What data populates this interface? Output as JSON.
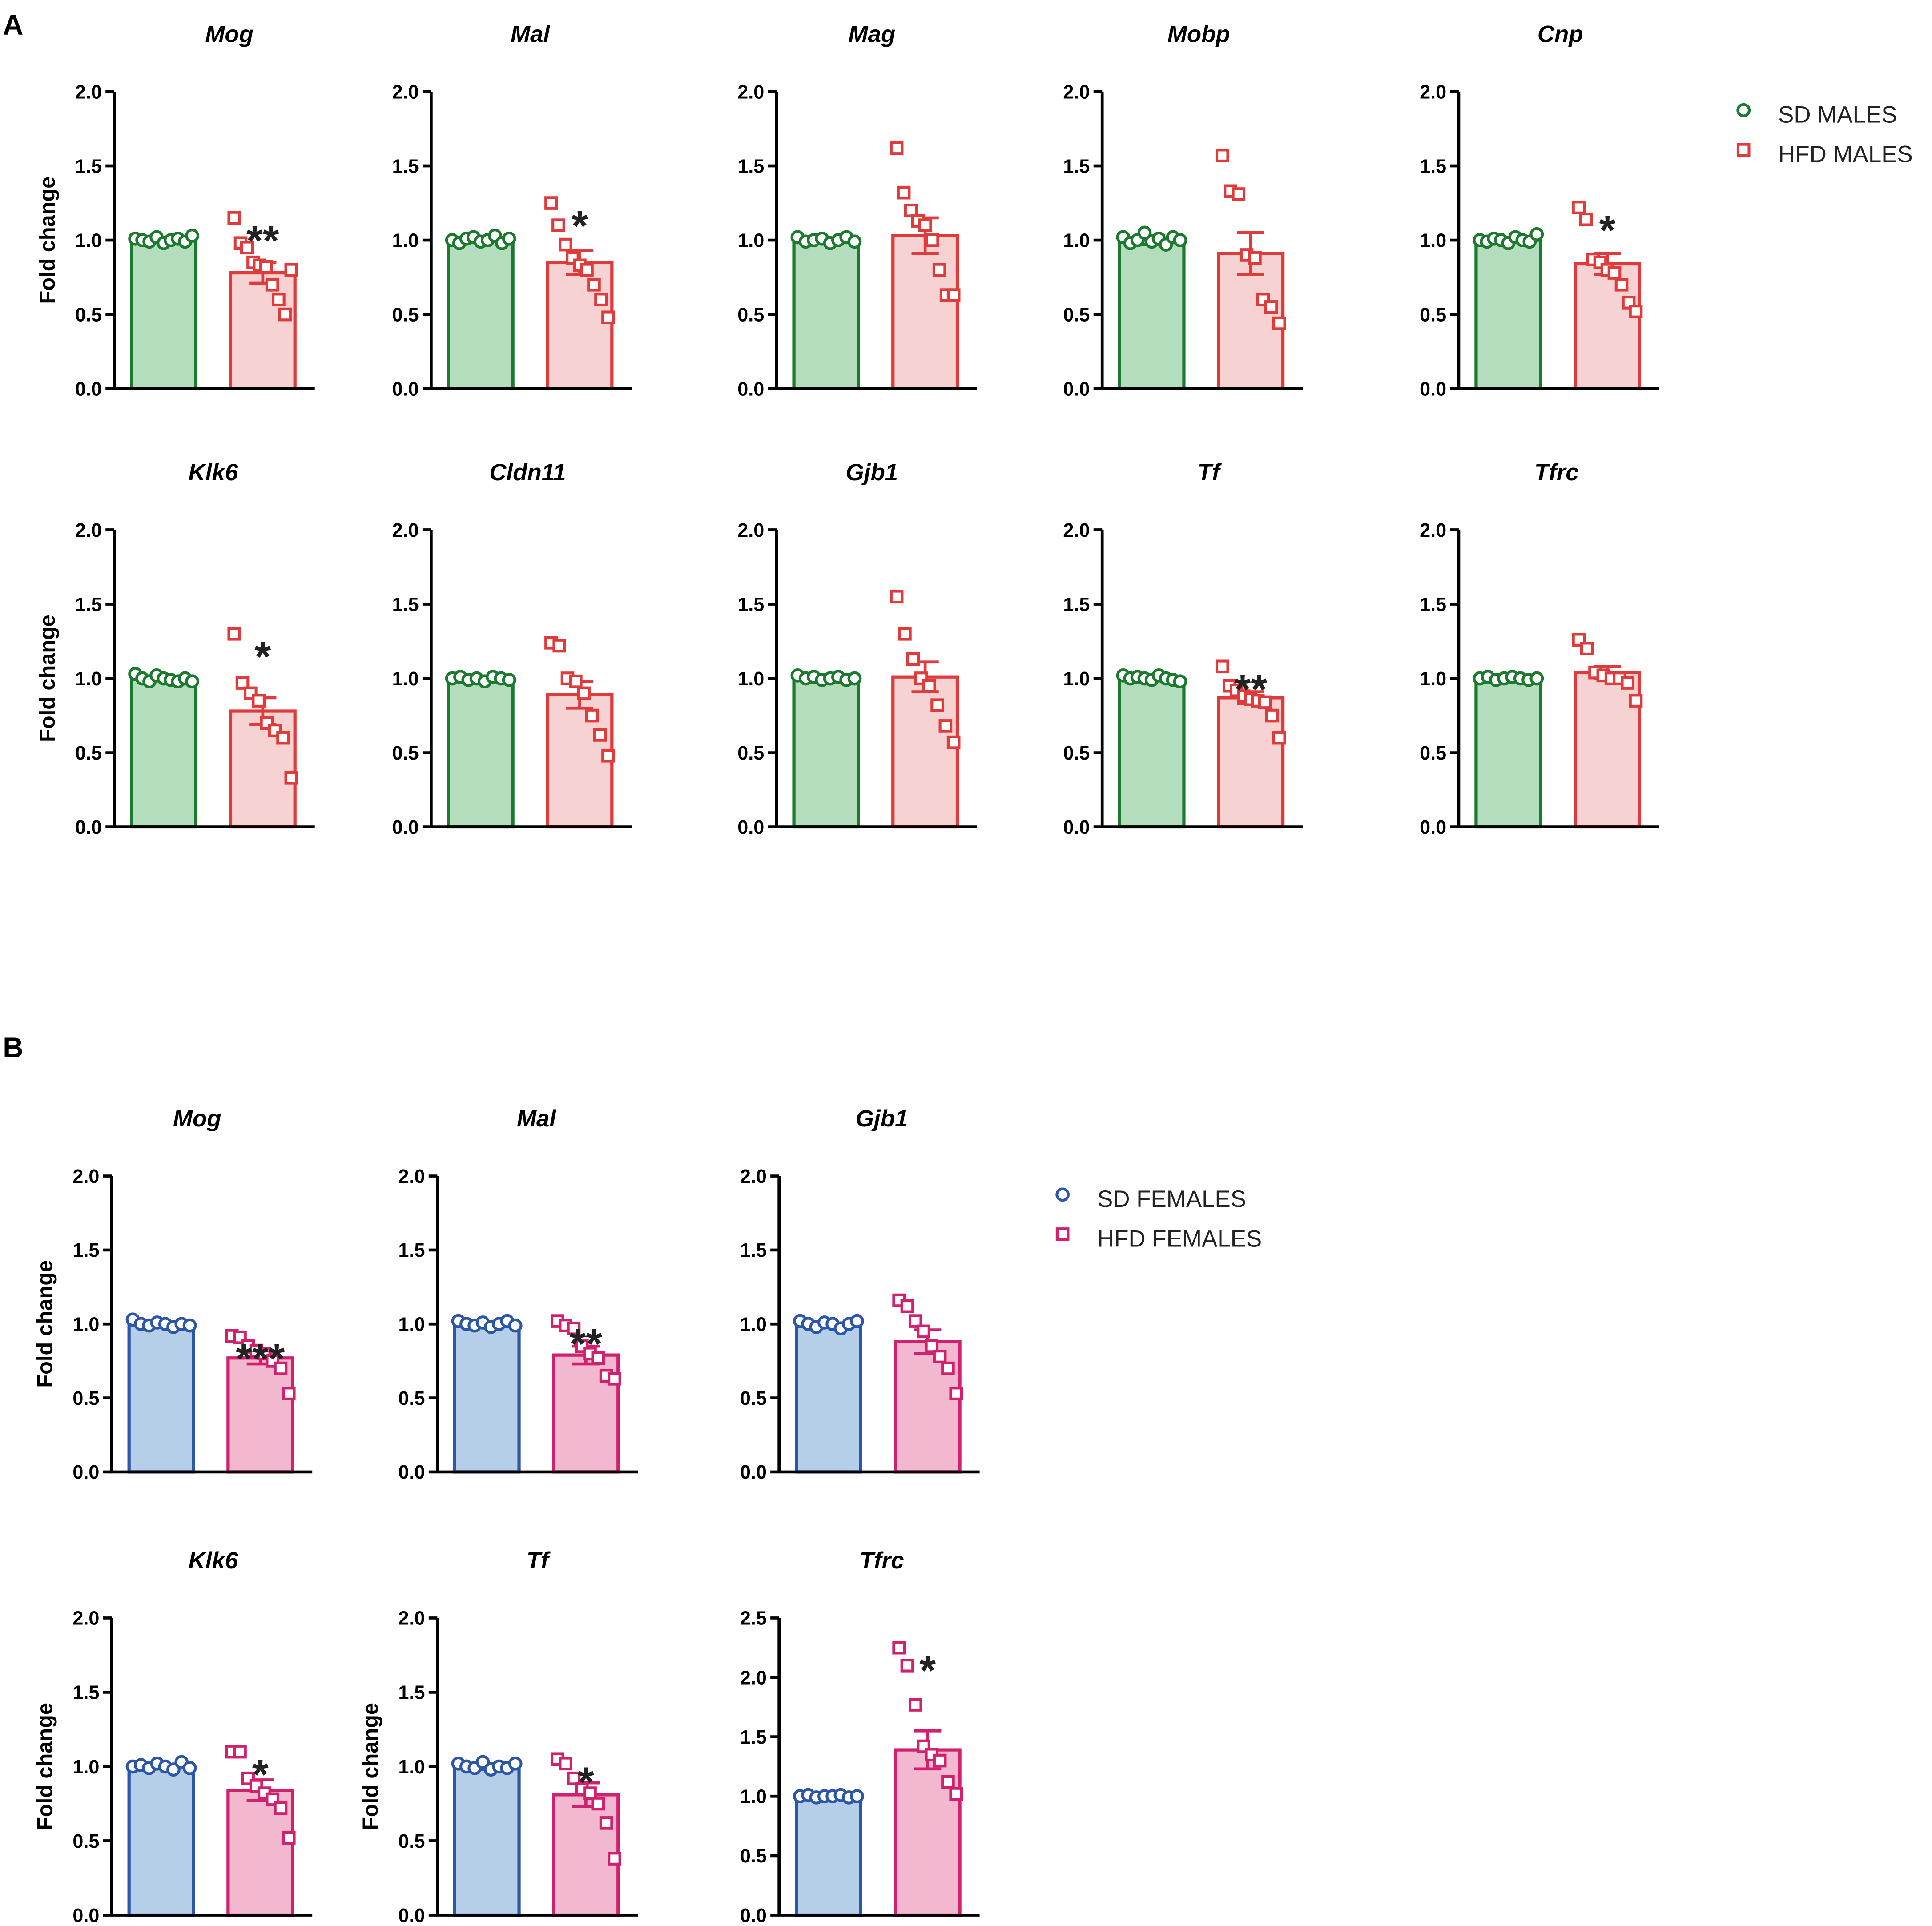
{
  "panels": [
    {
      "letter": "A",
      "legend": [
        {
          "label": "SD MALES",
          "marker": "circle",
          "color": "#1b7a2e"
        },
        {
          "label": "HFD MALES",
          "marker": "square",
          "color": "#e03a3a"
        }
      ],
      "group_style": [
        {
          "fill": "#b3ddbd",
          "stroke": "#1b7a2e",
          "marker": "circle"
        },
        {
          "fill": "#f6d2d2",
          "stroke": "#e03a3a",
          "marker": "square"
        }
      ]
    },
    {
      "letter": "B",
      "legend": [
        {
          "label": "SD FEMALES",
          "marker": "circle",
          "color": "#2c56a8"
        },
        {
          "label": "HFD FEMALES",
          "marker": "square",
          "color": "#d0206e"
        }
      ],
      "group_style": [
        {
          "fill": "#b6cfe9",
          "stroke": "#2c56a8",
          "marker": "circle"
        },
        {
          "fill": "#f2b8cf",
          "stroke": "#d0206e",
          "marker": "square"
        }
      ]
    }
  ],
  "chart_data": [
    {
      "type": "bar",
      "panel": "A",
      "title": "Mog",
      "ylabel": "Fold change",
      "ylim": [
        0,
        2.0
      ],
      "yticks": [
        "0.0",
        "0.5",
        "1.0",
        "1.5",
        "2.0"
      ],
      "categories": [
        "SD MALES",
        "HFD MALES"
      ],
      "values": [
        1.0,
        0.78
      ],
      "errors": [
        0.01,
        0.07
      ],
      "significance": "**",
      "points": [
        [
          1.01,
          1.0,
          0.99,
          1.02,
          0.98,
          1.0,
          1.01,
          0.99,
          1.03
        ],
        [
          1.15,
          0.98,
          0.95,
          0.85,
          0.83,
          0.82,
          0.7,
          0.6,
          0.5,
          0.8
        ]
      ]
    },
    {
      "type": "bar",
      "panel": "A",
      "title": "Mal",
      "ylabel": "",
      "ylim": [
        0,
        2.0
      ],
      "yticks": [
        "0.0",
        "0.5",
        "1.0",
        "1.5",
        "2.0"
      ],
      "categories": [
        "SD MALES",
        "HFD MALES"
      ],
      "values": [
        1.0,
        0.85
      ],
      "errors": [
        0.01,
        0.08
      ],
      "significance": "*",
      "points": [
        [
          1.0,
          0.98,
          1.01,
          1.02,
          0.99,
          1.0,
          1.03,
          0.98,
          1.01
        ],
        [
          1.25,
          1.1,
          0.97,
          0.88,
          0.83,
          0.8,
          0.7,
          0.6,
          0.48
        ]
      ]
    },
    {
      "type": "bar",
      "panel": "A",
      "title": "Mag",
      "ylabel": "",
      "ylim": [
        0,
        2.0
      ],
      "yticks": [
        "0.0",
        "0.5",
        "1.0",
        "1.5",
        "2.0"
      ],
      "categories": [
        "SD MALES",
        "HFD MALES"
      ],
      "values": [
        1.0,
        1.03
      ],
      "errors": [
        0.01,
        0.12
      ],
      "significance": "",
      "points": [
        [
          1.02,
          0.99,
          1.0,
          1.01,
          0.98,
          1.0,
          1.02,
          0.99
        ],
        [
          1.62,
          1.32,
          1.2,
          1.13,
          1.1,
          1.0,
          0.8,
          0.63,
          0.63
        ]
      ]
    },
    {
      "type": "bar",
      "panel": "A",
      "title": "Mobp",
      "ylabel": "",
      "ylim": [
        0,
        2.0
      ],
      "yticks": [
        "0.0",
        "0.5",
        "1.0",
        "1.5",
        "2.0"
      ],
      "categories": [
        "SD MALES",
        "HFD MALES"
      ],
      "values": [
        1.0,
        0.91
      ],
      "errors": [
        0.03,
        0.14
      ],
      "significance": "",
      "points": [
        [
          1.02,
          0.98,
          1.0,
          1.05,
          0.99,
          1.01,
          0.97,
          1.02,
          1.0
        ],
        [
          1.57,
          1.33,
          1.31,
          0.9,
          0.88,
          0.6,
          0.55,
          0.44
        ]
      ]
    },
    {
      "type": "bar",
      "panel": "A",
      "title": "Cnp",
      "ylabel": "",
      "ylim": [
        0,
        2.0
      ],
      "yticks": [
        "0.0",
        "0.5",
        "1.0",
        "1.5",
        "2.0"
      ],
      "categories": [
        "SD MALES",
        "HFD MALES"
      ],
      "values": [
        1.0,
        0.84
      ],
      "errors": [
        0.01,
        0.07
      ],
      "significance": "*",
      "points": [
        [
          1.0,
          0.99,
          1.01,
          1.0,
          0.98,
          1.02,
          1.0,
          0.99,
          1.04
        ],
        [
          1.22,
          1.14,
          0.87,
          0.85,
          0.8,
          0.78,
          0.7,
          0.58,
          0.52
        ]
      ]
    },
    {
      "type": "bar",
      "panel": "A",
      "title": "Klk6",
      "ylabel": "Fold change",
      "ylim": [
        0,
        2.0
      ],
      "yticks": [
        "0.0",
        "0.5",
        "1.0",
        "1.5",
        "2.0"
      ],
      "categories": [
        "SD MALES",
        "HFD MALES"
      ],
      "values": [
        1.0,
        0.78
      ],
      "errors": [
        0.01,
        0.09
      ],
      "significance": "*",
      "points": [
        [
          1.03,
          1.0,
          0.98,
          1.02,
          1.0,
          0.99,
          0.98,
          1.0,
          0.98
        ],
        [
          1.3,
          0.97,
          0.9,
          0.85,
          0.7,
          0.65,
          0.6,
          0.33
        ]
      ]
    },
    {
      "type": "bar",
      "panel": "A",
      "title": "Cldn11",
      "ylabel": "",
      "ylim": [
        0,
        2.0
      ],
      "yticks": [
        "0.0",
        "0.5",
        "1.0",
        "1.5",
        "2.0"
      ],
      "categories": [
        "SD MALES",
        "HFD MALES"
      ],
      "values": [
        1.0,
        0.89
      ],
      "errors": [
        0.01,
        0.09
      ],
      "significance": "",
      "points": [
        [
          1.0,
          1.01,
          0.99,
          1.0,
          0.98,
          1.01,
          1.0,
          0.99
        ],
        [
          1.24,
          1.22,
          1.0,
          0.98,
          0.9,
          0.75,
          0.62,
          0.48
        ]
      ]
    },
    {
      "type": "bar",
      "panel": "A",
      "title": "Gjb1",
      "ylabel": "",
      "ylim": [
        0,
        2.0
      ],
      "yticks": [
        "0.0",
        "0.5",
        "1.0",
        "1.5",
        "2.0"
      ],
      "categories": [
        "SD MALES",
        "HFD MALES"
      ],
      "values": [
        1.0,
        1.01
      ],
      "errors": [
        0.01,
        0.1
      ],
      "significance": "",
      "points": [
        [
          1.02,
          1.0,
          1.01,
          0.99,
          1.0,
          1.01,
          0.99,
          1.0
        ],
        [
          1.55,
          1.3,
          1.13,
          1.0,
          0.95,
          0.82,
          0.68,
          0.57
        ]
      ]
    },
    {
      "type": "bar",
      "panel": "A",
      "title": "Tf",
      "ylabel": "",
      "ylim": [
        0,
        2.0
      ],
      "yticks": [
        "0.0",
        "0.5",
        "1.0",
        "1.5",
        "2.0"
      ],
      "categories": [
        "SD MALES",
        "HFD MALES"
      ],
      "values": [
        1.0,
        0.87
      ],
      "errors": [
        0.01,
        0.04
      ],
      "significance": "**",
      "points": [
        [
          1.02,
          1.0,
          1.01,
          1.0,
          0.99,
          1.02,
          1.0,
          0.99,
          0.98
        ],
        [
          1.08,
          0.95,
          0.92,
          0.88,
          0.86,
          0.85,
          0.84,
          0.75,
          0.6
        ]
      ]
    },
    {
      "type": "bar",
      "panel": "A",
      "title": "Tfrc",
      "ylabel": "",
      "ylim": [
        0,
        2.0
      ],
      "yticks": [
        "0.0",
        "0.5",
        "1.0",
        "1.5",
        "2.0"
      ],
      "categories": [
        "SD MALES",
        "HFD MALES"
      ],
      "values": [
        1.0,
        1.04
      ],
      "errors": [
        0.01,
        0.04
      ],
      "significance": "",
      "points": [
        [
          1.0,
          1.01,
          0.99,
          1.0,
          1.01,
          1.0,
          0.99,
          1.0
        ],
        [
          1.26,
          1.2,
          1.04,
          1.02,
          1.0,
          1.0,
          0.97,
          0.85
        ]
      ]
    },
    {
      "type": "bar",
      "panel": "B",
      "title": "Mog",
      "ylabel": "Fold change",
      "ylim": [
        0,
        2.0
      ],
      "yticks": [
        "0.0",
        "0.5",
        "1.0",
        "1.5",
        "2.0"
      ],
      "categories": [
        "SD FEMALES",
        "HFD FEMALES"
      ],
      "values": [
        1.0,
        0.77
      ],
      "errors": [
        0.01,
        0.04
      ],
      "significance": "***",
      "points": [
        [
          1.03,
          1.0,
          0.99,
          1.01,
          1.0,
          0.98,
          1.0,
          0.99
        ],
        [
          0.92,
          0.91,
          0.85,
          0.82,
          0.8,
          0.75,
          0.7,
          0.53
        ]
      ]
    },
    {
      "type": "bar",
      "panel": "B",
      "title": "Mal",
      "ylabel": "",
      "ylim": [
        0,
        2.0
      ],
      "yticks": [
        "0.0",
        "0.5",
        "1.0",
        "1.5",
        "2.0"
      ],
      "categories": [
        "SD FEMALES",
        "HFD FEMALES"
      ],
      "values": [
        1.0,
        0.79
      ],
      "errors": [
        0.01,
        0.06
      ],
      "significance": "**",
      "points": [
        [
          1.02,
          1.0,
          0.99,
          1.01,
          0.98,
          1.0,
          1.02,
          0.99
        ],
        [
          1.02,
          0.99,
          0.97,
          0.85,
          0.8,
          0.77,
          0.65,
          0.63
        ]
      ]
    },
    {
      "type": "bar",
      "panel": "B",
      "title": "Gjb1",
      "ylabel": "",
      "ylim": [
        0,
        2.0
      ],
      "yticks": [
        "0.0",
        "0.5",
        "1.0",
        "1.5",
        "2.0"
      ],
      "categories": [
        "SD FEMALES",
        "HFD FEMALES"
      ],
      "values": [
        1.0,
        0.88
      ],
      "errors": [
        0.01,
        0.08
      ],
      "significance": "",
      "points": [
        [
          1.02,
          1.0,
          0.98,
          1.01,
          1.0,
          0.97,
          1.0,
          1.02
        ],
        [
          1.16,
          1.12,
          1.02,
          0.95,
          0.85,
          0.78,
          0.7,
          0.53
        ]
      ]
    },
    {
      "type": "bar",
      "panel": "B",
      "title": "Klk6",
      "ylabel": "Fold change",
      "ylim": [
        0,
        2.0
      ],
      "yticks": [
        "0.0",
        "0.5",
        "1.0",
        "1.5",
        "2.0"
      ],
      "categories": [
        "SD FEMALES",
        "HFD FEMALES"
      ],
      "values": [
        1.0,
        0.84
      ],
      "errors": [
        0.01,
        0.07
      ],
      "significance": "*",
      "points": [
        [
          1.0,
          1.01,
          0.99,
          1.02,
          1.0,
          0.98,
          1.03,
          0.99
        ],
        [
          1.1,
          1.1,
          0.92,
          0.87,
          0.82,
          0.78,
          0.72,
          0.52
        ]
      ]
    },
    {
      "type": "bar",
      "panel": "B",
      "title": "Tf",
      "ylabel": "Fold change",
      "ylim": [
        0,
        2.0
      ],
      "yticks": [
        "0.0",
        "0.5",
        "1.0",
        "1.5",
        "2.0"
      ],
      "categories": [
        "SD FEMALES",
        "HFD FEMALES"
      ],
      "values": [
        1.0,
        0.81
      ],
      "errors": [
        0.02,
        0.08
      ],
      "significance": "*",
      "points": [
        [
          1.02,
          1.0,
          0.99,
          1.03,
          0.98,
          1.0,
          0.99,
          1.02
        ],
        [
          1.05,
          1.02,
          0.92,
          0.85,
          0.82,
          0.75,
          0.62,
          0.38
        ]
      ]
    },
    {
      "type": "bar",
      "panel": "B",
      "title": "Tfrc",
      "ylabel": "",
      "ylim": [
        0,
        2.5
      ],
      "yticks": [
        "0.0",
        "0.5",
        "1.0",
        "1.5",
        "2.0",
        "2.5"
      ],
      "categories": [
        "SD FEMALES",
        "HFD FEMALES"
      ],
      "values": [
        1.0,
        1.39
      ],
      "errors": [
        0.01,
        0.16
      ],
      "significance": "*",
      "points": [
        [
          1.0,
          1.01,
          0.99,
          1.0,
          1.0,
          1.01,
          0.99,
          1.0
        ],
        [
          2.25,
          2.1,
          1.77,
          1.42,
          1.35,
          1.3,
          1.12,
          1.02
        ]
      ]
    }
  ]
}
